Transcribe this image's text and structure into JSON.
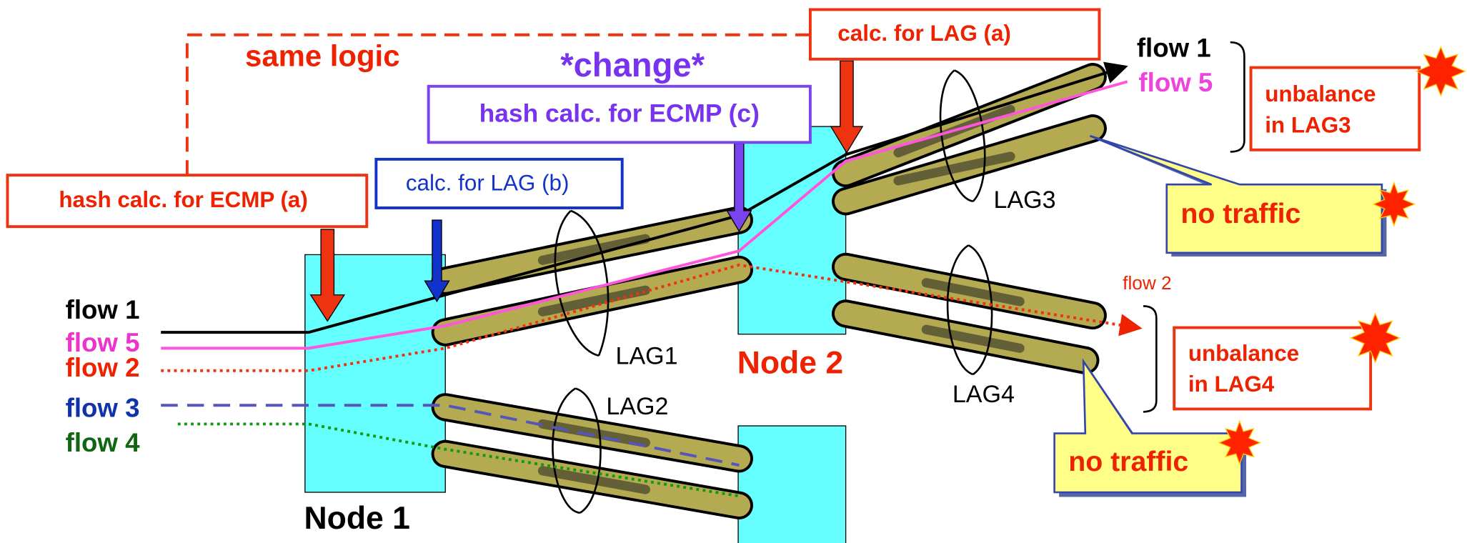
{
  "labels": {
    "same_logic": "same logic",
    "change": "*change*"
  },
  "boxes": {
    "lag_a": "calc. for LAG (a)",
    "ecmp_c": "hash calc. for ECMP (c)",
    "lag_b": "calc. for LAG (b)",
    "ecmp_a": "hash calc. for ECMP (a)"
  },
  "nodes": [
    "Node 1",
    "Node 2"
  ],
  "lags": [
    "LAG1",
    "LAG2",
    "LAG3",
    "LAG4"
  ],
  "flows_left": [
    "flow 1",
    "flow 5",
    "flow 2",
    "flow 3",
    "flow 4"
  ],
  "flows_right": [
    "flow 1",
    "flow 5",
    "flow 2"
  ],
  "callouts": {
    "unbalance_lag3": [
      "unbalance",
      "in LAG3"
    ],
    "unbalance_lag4": [
      "unbalance",
      "in LAG4"
    ],
    "no_traffic_1": "no traffic",
    "no_traffic_2": "no traffic"
  }
}
